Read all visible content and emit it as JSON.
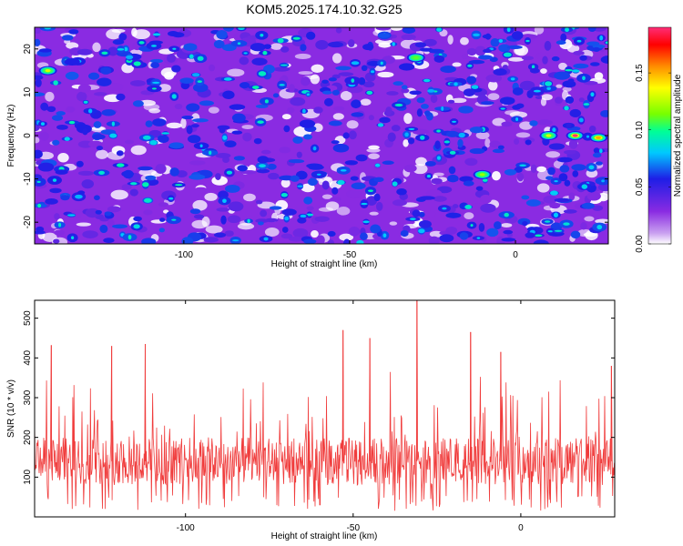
{
  "figure": {
    "title": "KOM5.2025.174.10.32.G25"
  },
  "colors": {
    "snr_line": "#f03c3c",
    "background": "#ffffff",
    "axes": "#000000"
  },
  "chart_data": [
    {
      "type": "heatmap",
      "xlabel": "Height of straight line (km)",
      "ylabel": "Frequency (Hz)",
      "xlim": [
        -145,
        28
      ],
      "ylim": [
        -25,
        25
      ],
      "x_ticks": [
        -100,
        -50,
        0
      ],
      "y_ticks": [
        -20,
        -10,
        0,
        10,
        20
      ],
      "colorscale": [
        "#ffffff",
        "#8a2be2",
        "#1e1ee6",
        "#00c8ff",
        "#00ff96",
        "#78ff00",
        "#ffff00",
        "#ff8c00",
        "#ff0000",
        "#ff2d78"
      ],
      "colorbar": {
        "label": "Normalized spectral amplitude",
        "range": [
          0,
          0.19
        ],
        "ticks": [
          0,
          0.05,
          0.1,
          0.15
        ],
        "tick_labels": [
          "0.00",
          "0.05",
          "0.10",
          "0.15"
        ]
      },
      "features": [
        {
          "x": 18,
          "y": 0,
          "value": 0.19
        },
        {
          "x": 10,
          "y": 0,
          "value": 0.13
        },
        {
          "x": 25,
          "y": -0.5,
          "value": 0.15
        },
        {
          "x": -10,
          "y": -9,
          "value": 0.12
        },
        {
          "x": -30,
          "y": 18,
          "value": 0.11
        },
        {
          "x": -141,
          "y": 15,
          "value": 0.13
        }
      ]
    },
    {
      "type": "line",
      "xlabel": "Height of straight line (km)",
      "ylabel": "SNR (10 * v/v)",
      "xlim": [
        -145,
        28
      ],
      "ylim": [
        0,
        545
      ],
      "x_ticks": [
        -100,
        -50,
        0
      ],
      "y_ticks": [
        100,
        200,
        300,
        400,
        500
      ],
      "series": [
        {
          "x_step": 0.17,
          "base_mean": 140,
          "notable_peaks": [
            {
              "x": -31,
              "y": 545
            },
            {
              "x": -53,
              "y": 470
            },
            {
              "x": -15,
              "y": 465
            },
            {
              "x": -140,
              "y": 432
            },
            {
              "x": -122,
              "y": 430
            },
            {
              "x": -112,
              "y": 435
            },
            {
              "x": -45,
              "y": 450
            },
            {
              "x": -6,
              "y": 415
            },
            {
              "x": 27,
              "y": 380
            }
          ]
        }
      ]
    }
  ]
}
